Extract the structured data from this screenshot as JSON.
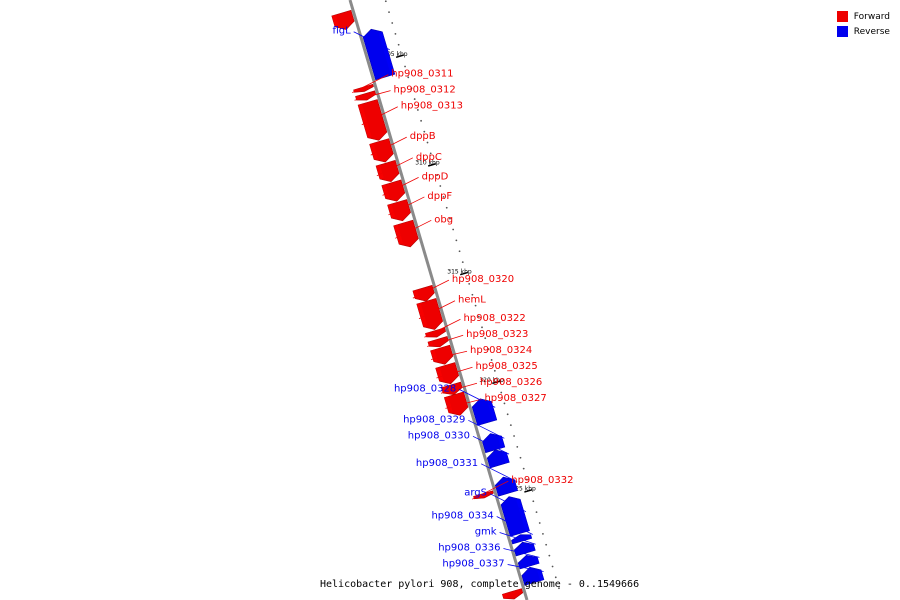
{
  "legend": {
    "forward_label": "Forward",
    "reverse_label": "Reverse",
    "forward_color": "#ee0000",
    "reverse_color": "#0000ee"
  },
  "caption": "Helicobacter pylori 908, complete genome - 0..1549666",
  "ruler_ticks": [
    {
      "label": "305 kbp",
      "kbp": 305
    },
    {
      "label": "310 kbp",
      "kbp": 310
    },
    {
      "label": "315 kbp",
      "kbp": 315
    },
    {
      "label": "320 kbp",
      "kbp": 320
    },
    {
      "label": "325 kbp",
      "kbp": 325
    }
  ],
  "genes": [
    {
      "label": "",
      "strand": "forward",
      "start": 302.45,
      "end": 303.2,
      "labeled": false
    },
    {
      "label": "flgL",
      "strand": "reverse",
      "start": 303.5,
      "end": 305.7
    },
    {
      "label": "hp908_0311",
      "strand": "forward",
      "start": 305.85,
      "end": 306.05
    },
    {
      "label": "hp908_0312",
      "strand": "forward",
      "start": 306.15,
      "end": 306.45
    },
    {
      "label": "hp908_0313",
      "strand": "forward",
      "start": 306.55,
      "end": 308.3
    },
    {
      "label": "dppB",
      "strand": "forward",
      "start": 308.35,
      "end": 309.3
    },
    {
      "label": "dppC",
      "strand": "forward",
      "start": 309.35,
      "end": 310.2
    },
    {
      "label": "dppD",
      "strand": "forward",
      "start": 310.25,
      "end": 311.1
    },
    {
      "label": "dppF",
      "strand": "forward",
      "start": 311.15,
      "end": 312.0
    },
    {
      "label": "obg",
      "strand": "forward",
      "start": 312.1,
      "end": 313.2
    },
    {
      "label": "hp908_0320",
      "strand": "forward",
      "start": 315.1,
      "end": 315.7
    },
    {
      "label": "hemL",
      "strand": "forward",
      "start": 315.7,
      "end": 317.0
    },
    {
      "label": "hp908_0322",
      "strand": "forward",
      "start": 317.05,
      "end": 317.35
    },
    {
      "label": "hp908_0323",
      "strand": "forward",
      "start": 317.45,
      "end": 317.8
    },
    {
      "label": "hp908_0324",
      "strand": "forward",
      "start": 317.85,
      "end": 318.6
    },
    {
      "label": "hp908_0325",
      "strand": "forward",
      "start": 318.65,
      "end": 319.5
    },
    {
      "label": "hp908_0326",
      "strand": "forward",
      "start": 319.55,
      "end": 320.0
    },
    {
      "label": "hp908_0327",
      "strand": "forward",
      "start": 320.0,
      "end": 320.95
    },
    {
      "label": "hp908_0328",
      "strand": "reverse",
      "start": 320.5,
      "end": 321.6
    },
    {
      "label": "hp908_0329",
      "strand": "reverse",
      "start": 322.1,
      "end": 322.85
    },
    {
      "label": "hp908_0330",
      "strand": "reverse",
      "start": 322.85,
      "end": 323.55
    },
    {
      "label": "hp908_0331",
      "strand": "reverse",
      "start": 324.1,
      "end": 324.85
    },
    {
      "label": "hp908_0332",
      "strand": "forward",
      "start": 324.55,
      "end": 324.75
    },
    {
      "label": "argS",
      "strand": "reverse",
      "start": 325.0,
      "end": 326.7
    },
    {
      "label": "hp908_0334",
      "strand": "reverse",
      "start": 326.75,
      "end": 327.05
    },
    {
      "label": "gmk",
      "strand": "reverse",
      "start": 327.1,
      "end": 327.6
    },
    {
      "label": "hp908_0336",
      "strand": "reverse",
      "start": 327.7,
      "end": 328.2
    },
    {
      "label": "hp908_0337",
      "strand": "reverse",
      "start": 328.25,
      "end": 328.95
    },
    {
      "label": "",
      "strand": "forward",
      "start": 329.05,
      "end": 329.4,
      "labeled": false
    }
  ]
}
